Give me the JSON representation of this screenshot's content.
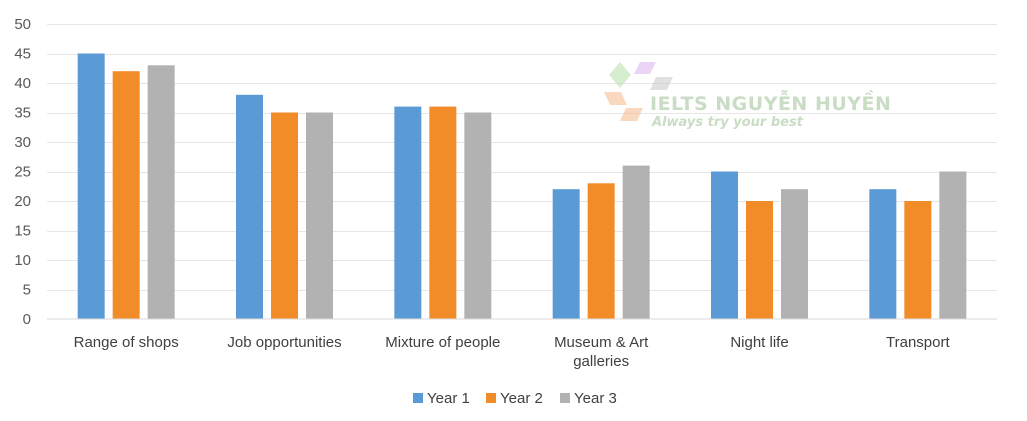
{
  "chart_data": {
    "type": "bar",
    "categories": [
      [
        "Range of shops"
      ],
      [
        "Job opportunities"
      ],
      [
        "Mixture of people"
      ],
      [
        "Museum & Art",
        "galleries"
      ],
      [
        "Night life"
      ],
      [
        "Transport"
      ]
    ],
    "series": [
      {
        "name": "Year 1",
        "color": "#5b9bd5",
        "values": [
          45,
          38,
          36,
          22,
          25,
          22
        ]
      },
      {
        "name": "Year 2",
        "color": "#f28c28",
        "values": [
          42,
          35,
          36,
          23,
          20,
          20
        ]
      },
      {
        "name": "Year 3",
        "color": "#b2b2b2",
        "values": [
          43,
          35,
          35,
          26,
          22,
          25
        ]
      }
    ],
    "ylim": [
      0,
      50
    ],
    "yticks": [
      0,
      5,
      10,
      15,
      20,
      25,
      30,
      35,
      40,
      45,
      50
    ],
    "grid": true,
    "legend_position": "bottom-center",
    "title": "",
    "xlabel": "",
    "ylabel": ""
  },
  "watermark": {
    "title": "IELTS NGUYỄN HUYỀN",
    "subtitle": "Always try your best",
    "color": "#c9dcc4"
  }
}
